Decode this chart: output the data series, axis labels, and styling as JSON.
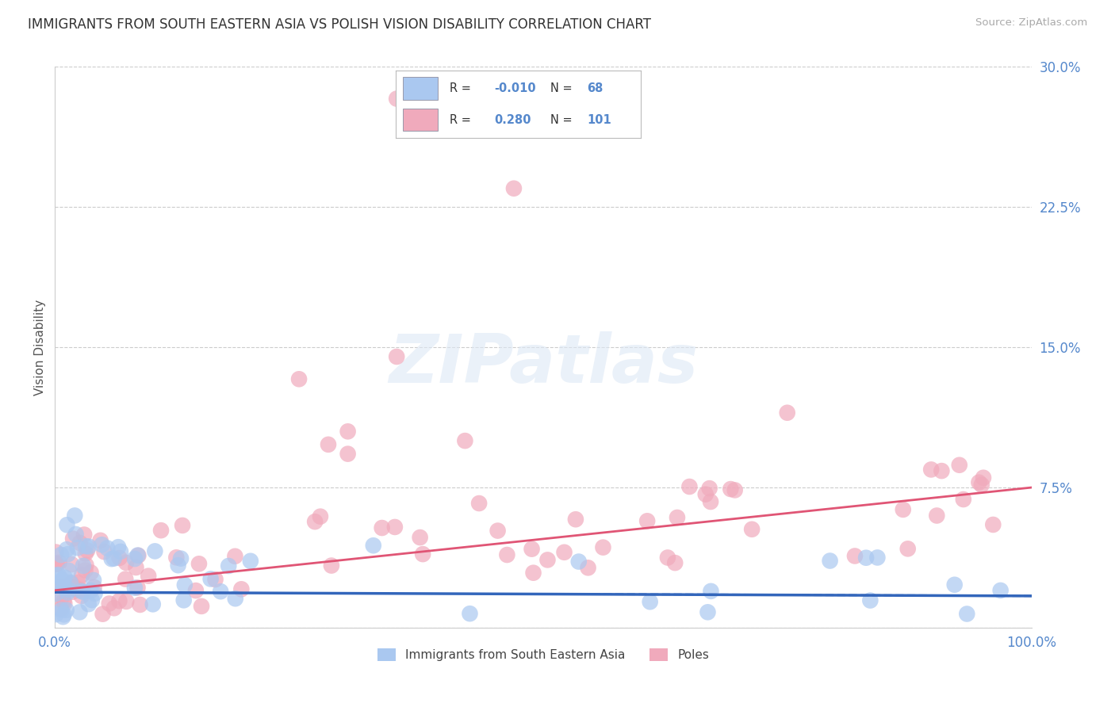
{
  "title": "IMMIGRANTS FROM SOUTH EASTERN ASIA VS POLISH VISION DISABILITY CORRELATION CHART",
  "source": "Source: ZipAtlas.com",
  "ylabel": "Vision Disability",
  "xlim": [
    0.0,
    1.0
  ],
  "ylim": [
    0.0,
    0.3
  ],
  "yticks": [
    0.0,
    0.075,
    0.15,
    0.225,
    0.3
  ],
  "ytick_labels": [
    "",
    "7.5%",
    "15.0%",
    "22.5%",
    "30.0%"
  ],
  "xtick_labels": [
    "0.0%",
    "100.0%"
  ],
  "series_blue": {
    "name": "Immigrants from South Eastern Asia",
    "R": -0.01,
    "N": 68,
    "color": "#aac8f0",
    "trend_color": "#3366bb",
    "trend_style": "-"
  },
  "series_pink": {
    "name": "Poles",
    "R": 0.28,
    "N": 101,
    "color": "#f0aabc",
    "trend_color": "#e05575",
    "trend_style": "-"
  },
  "watermark_text": "ZIPatlas",
  "background_color": "#ffffff",
  "grid_color": "#cccccc",
  "title_fontsize": 12,
  "axis_label_color": "#5588cc",
  "pink_trend_x0": 0.0,
  "pink_trend_y0": 0.02,
  "pink_trend_x1": 1.0,
  "pink_trend_y1": 0.075,
  "blue_trend_y": 0.018
}
